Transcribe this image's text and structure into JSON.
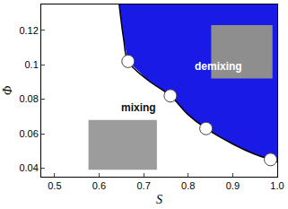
{
  "chart_data": {
    "type": "scatter",
    "x_label": "S",
    "y_label": "Φ",
    "xlim": [
      0.47,
      1.0
    ],
    "ylim": [
      0.035,
      0.135
    ],
    "xticks": [
      0.5,
      0.6,
      0.7,
      0.8,
      0.9,
      {
        "value": 1.0,
        "label": "1.0"
      }
    ],
    "yticks": [
      0.04,
      0.06,
      0.08,
      0.1,
      0.12
    ],
    "grid": false,
    "series": [
      {
        "name": "demixing",
        "type": "area",
        "color": "#1a1ae6",
        "line_style": "solid",
        "x": [
          0.645,
          0.655,
          0.665,
          0.71,
          0.76,
          0.8,
          0.84,
          0.9,
          0.95,
          0.985,
          1.0
        ],
        "values": [
          0.135,
          0.115,
          0.102,
          0.091,
          0.082,
          0.071,
          0.063,
          0.054,
          0.048,
          0.045,
          0.0435
        ]
      },
      {
        "name": "mixing",
        "type": "scatter",
        "color": "#ffffff",
        "marker": "circle",
        "x": [
          0.665,
          0.76,
          0.84,
          0.985
        ],
        "values": [
          0.102,
          0.082,
          0.063,
          0.045
        ]
      }
    ],
    "annotations": [
      {
        "text": "mixing"
      },
      {
        "text": "demixing"
      }
    ]
  }
}
